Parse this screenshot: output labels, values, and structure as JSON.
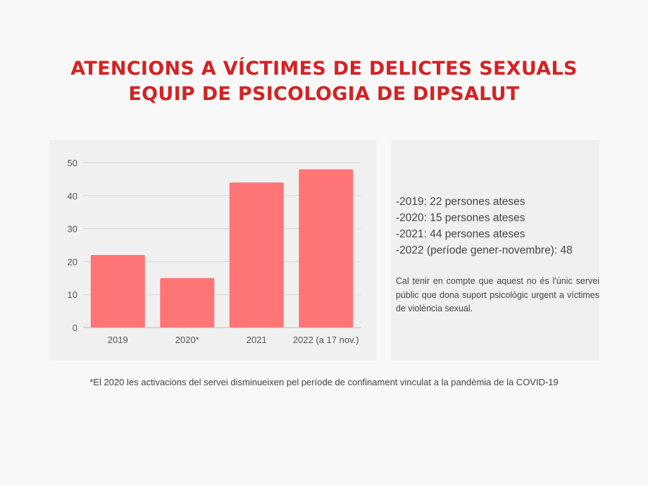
{
  "title": {
    "line1": "ATENCIONS A VÍCTIMES DE DELICTES SEXUALS",
    "line2": "EQUIP DE PSICOLOGIA DE DIPSALUT"
  },
  "chart_data": {
    "type": "bar",
    "categories": [
      "2019",
      "2020*",
      "2021",
      "2022 (a 17 nov.)"
    ],
    "values": [
      22,
      15,
      44,
      48
    ],
    "ylim": [
      0,
      50
    ],
    "yticks": [
      "0",
      "10",
      "20",
      "30",
      "40",
      "50"
    ],
    "grid": true,
    "bar_color": "#ff7575",
    "xlabel": "",
    "ylabel": ""
  },
  "info": {
    "stats": [
      "-2019: 22 persones ateses",
      "-2020: 15 persones ateses",
      "-2021: 44 persones ateses",
      "-2022 (període gener-novembre): 48"
    ],
    "note": "Cal tenir en compte que aquest no és l'únic servei públic que dona suport psicològic urgent a víctimes de violència sexual."
  },
  "footnote": "*El 2020 les activacions del servei disminueixen pel període de confinament vinculat a la pandèmia de la COVID-19"
}
